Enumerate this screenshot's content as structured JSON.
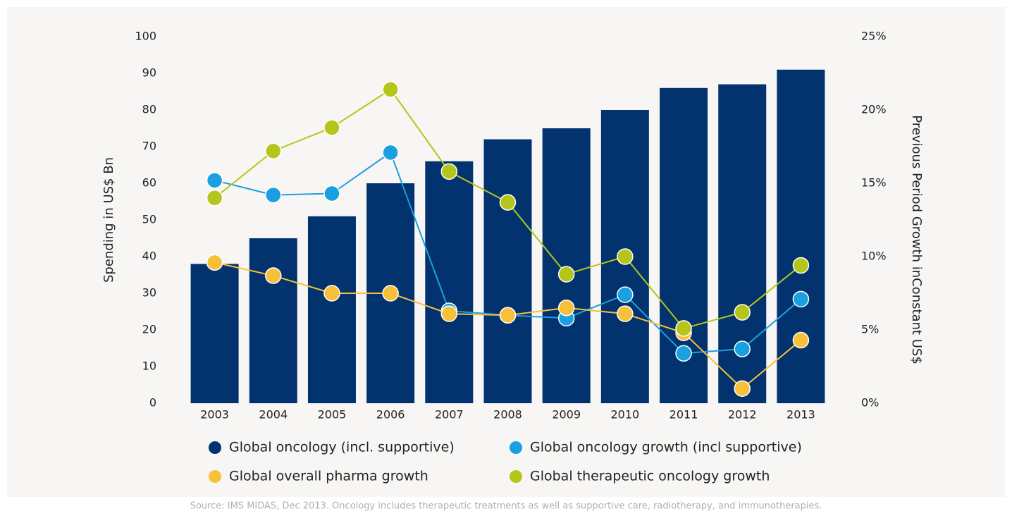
{
  "chart_data": {
    "type": "bar",
    "categories": [
      "2003",
      "2004",
      "2005",
      "2006",
      "2007",
      "2008",
      "2009",
      "2010",
      "2011",
      "2012",
      "2013"
    ],
    "ylabel": "Spending in US$ Bn",
    "y2label": "Previous Period Growth inConstant  US$",
    "ylim": [
      0,
      100
    ],
    "yticks": [
      0,
      10,
      20,
      30,
      40,
      50,
      60,
      70,
      80,
      90,
      100
    ],
    "y2lim": [
      0,
      25
    ],
    "y2ticks": [
      {
        "value": 0,
        "label": "0%"
      },
      {
        "value": 5,
        "label": "5%"
      },
      {
        "value": 10,
        "label": "10%"
      },
      {
        "value": 15,
        "label": "15%"
      },
      {
        "value": 20,
        "label": "20%"
      },
      {
        "value": 25,
        "label": "25%"
      }
    ],
    "legend": "bottom",
    "series": [
      {
        "name": "Global oncology (incl. supportive)",
        "type": "bar",
        "color": "#03336e",
        "values": [
          38,
          45,
          51,
          60,
          66,
          72,
          75,
          80,
          86,
          87,
          91
        ]
      },
      {
        "name": "Global oncology growth (incl supportive)",
        "type": "line",
        "axis": "y2",
        "color": "#1aa0e0",
        "values": [
          15.2,
          14.2,
          14.3,
          17.1,
          6.3,
          6.0,
          5.8,
          7.4,
          3.4,
          3.7,
          7.1
        ]
      },
      {
        "name": "Global overall pharma growth",
        "type": "line",
        "axis": "y2",
        "color": "#f8c03a",
        "values": [
          9.6,
          8.7,
          7.5,
          7.5,
          6.1,
          6.0,
          6.5,
          6.1,
          4.8,
          1.0,
          4.3
        ]
      },
      {
        "name": "Global therapeutic oncology growth",
        "type": "line",
        "axis": "y2",
        "color": "#b4c61a",
        "values": [
          14.0,
          17.2,
          18.8,
          21.4,
          15.8,
          13.7,
          8.8,
          10.0,
          5.1,
          6.2,
          9.4
        ]
      }
    ],
    "source": "Source: IMS MIDAS, Dec 2013. Oncology includes therapeutic treatments as well as supportive care, radiotherapy, and immunotherapies."
  }
}
